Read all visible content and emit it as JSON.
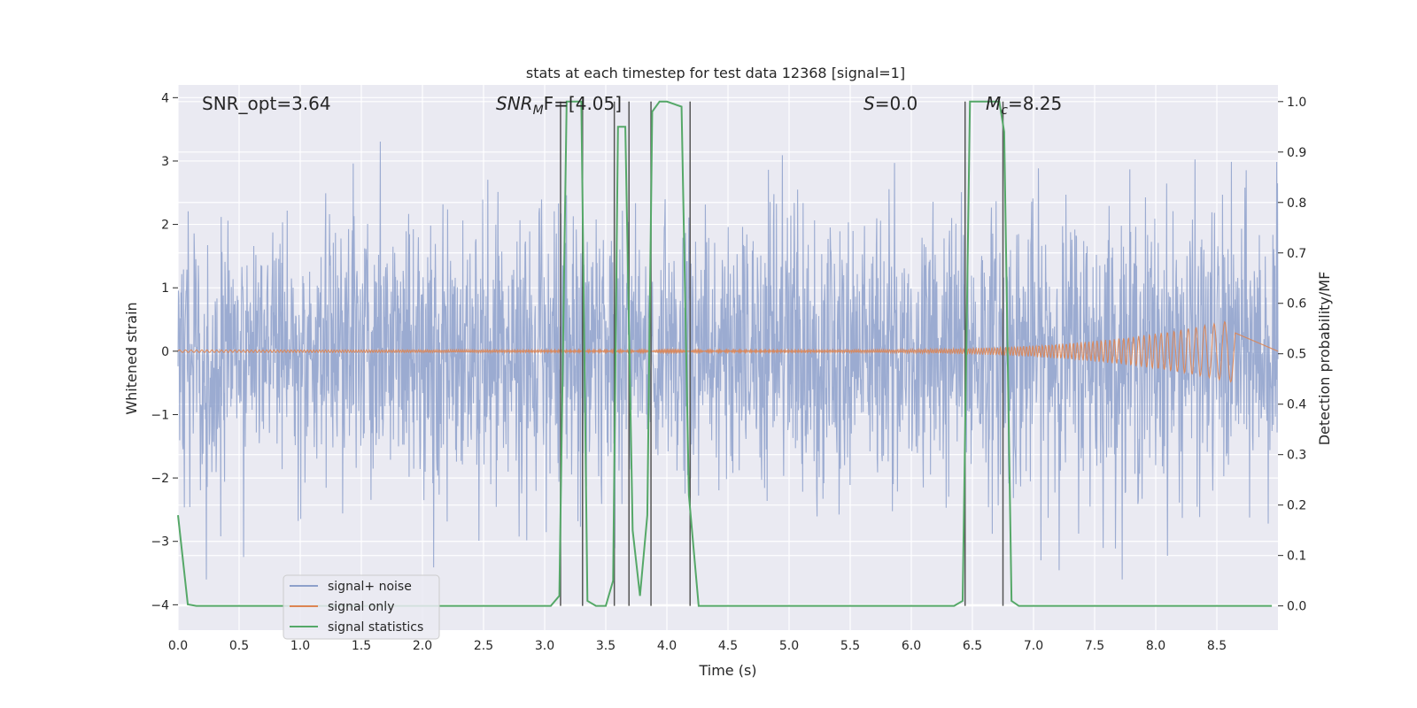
{
  "chart_data": {
    "type": "line",
    "title": "stats at each timestep for test data 12368 [signal=1]",
    "xlabel": "Time (s)",
    "ylabel": "Whitened strain",
    "y2label": "Detection probability/MF",
    "xlim": [
      0.0,
      9.0
    ],
    "ylim": [
      -4.4,
      4.2
    ],
    "y2lim": [
      -0.048,
      1.033
    ],
    "x_ticks": [
      "0.0",
      "0.5",
      "1.0",
      "1.5",
      "2.0",
      "2.5",
      "3.0",
      "3.5",
      "4.0",
      "4.5",
      "5.0",
      "5.5",
      "6.0",
      "6.5",
      "7.0",
      "7.5",
      "8.0",
      "8.5"
    ],
    "y_ticks": [
      "4",
      "3",
      "2",
      "1",
      "0",
      "−1",
      "−2",
      "−3",
      "−4"
    ],
    "y2_ticks": [
      "1.0",
      "0.9",
      "0.8",
      "0.7",
      "0.6",
      "0.5",
      "0.4",
      "0.3",
      "0.2",
      "0.1",
      "0.0"
    ],
    "grid": true,
    "legend_position": "lower-left",
    "annotations": {
      "snr_opt": "SNR_opt=3.64",
      "snr_mf_main": "SNR",
      "snr_mf_sub": "M",
      "snr_mf_rest": "F=[4.05]",
      "s_italic": "S",
      "s_rest": "=0.0",
      "mc_main": "M",
      "mc_sub": "c",
      "mc_rest": "=8.25"
    },
    "series": [
      {
        "name": "signal+ noise",
        "color": "#8da0cb",
        "note": "white-noise-like strain, amplitude roughly ±2.5 with spikes to ±3.5"
      },
      {
        "name": "signal only",
        "color": "#dd8452",
        "note": "chirp growing in amplitude from ~5.5 s, peak ~±0.5 near 8.6 s"
      },
      {
        "name": "signal statistics",
        "color": "#55a868",
        "x": [
          0.0,
          0.08,
          0.15,
          3.05,
          3.12,
          3.18,
          3.3,
          3.35,
          3.42,
          3.5,
          3.56,
          3.6,
          3.66,
          3.72,
          3.78,
          3.84,
          3.88,
          3.94,
          4.0,
          4.12,
          4.18,
          4.26,
          6.35,
          6.42,
          6.48,
          6.72,
          6.76,
          6.82,
          6.88,
          8.95
        ],
        "y": [
          0.18,
          0.003,
          0.0,
          0.0,
          0.02,
          1.0,
          1.0,
          0.01,
          0.0,
          0.0,
          0.05,
          0.95,
          0.95,
          0.15,
          0.02,
          0.18,
          0.98,
          1.0,
          1.0,
          0.99,
          0.22,
          0.0,
          0.0,
          0.01,
          1.0,
          1.0,
          0.94,
          0.01,
          0.0,
          0.0
        ]
      }
    ],
    "vertical_markers_s": [
      3.13,
      3.31,
      3.57,
      3.69,
      3.87,
      4.19,
      6.44,
      6.75
    ]
  }
}
